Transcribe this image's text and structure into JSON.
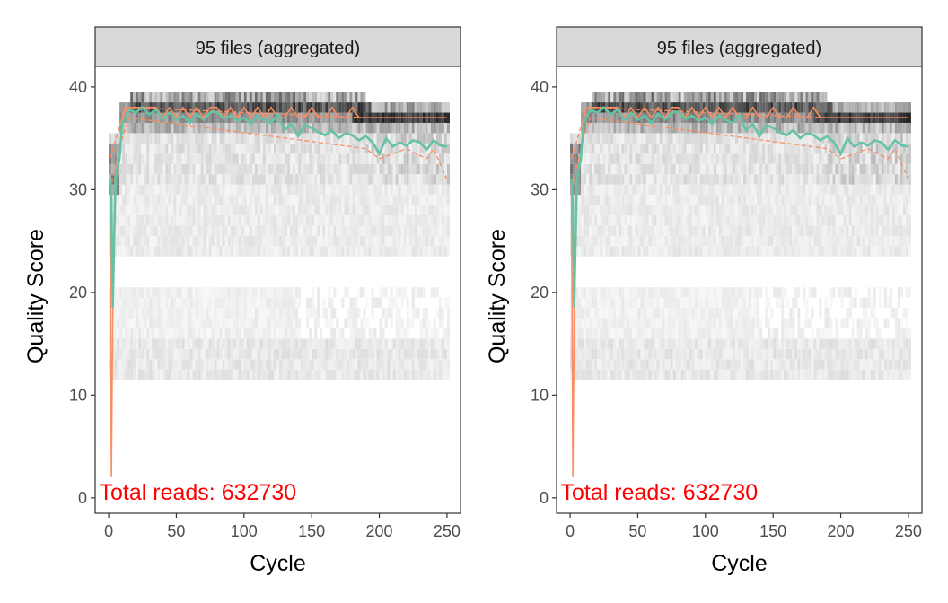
{
  "chart_data": [
    {
      "type": "heatmap",
      "panel_title": "95 files (aggregated)",
      "xlabel": "Cycle",
      "ylabel": "Quality Score",
      "xlim": [
        -10,
        260
      ],
      "ylim": [
        -1.5,
        42
      ],
      "xticks": [
        0,
        50,
        100,
        150,
        200,
        250
      ],
      "yticks": [
        0,
        10,
        20,
        30,
        40
      ],
      "grid": false,
      "annotation": "Total reads: 632730",
      "colors": {
        "mean": "#66c2a5",
        "median": "#fc8d62",
        "quartile": "#fc8d62",
        "annotation": "#ff0000",
        "strip": "#d9d9d9"
      },
      "mean_line": {
        "x": [
          1,
          2,
          3,
          5,
          8,
          10,
          12,
          15,
          20,
          25,
          30,
          35,
          40,
          45,
          50,
          55,
          60,
          65,
          70,
          75,
          80,
          85,
          90,
          95,
          100,
          105,
          110,
          115,
          120,
          125,
          130,
          135,
          140,
          145,
          150,
          155,
          160,
          165,
          170,
          175,
          180,
          185,
          190,
          195,
          200,
          205,
          210,
          215,
          220,
          225,
          230,
          235,
          240,
          245,
          250
        ],
        "y": [
          31,
          29,
          18.5,
          31,
          33,
          36.5,
          37,
          37.8,
          37.5,
          38,
          37.3,
          37.8,
          36.8,
          37.5,
          36.8,
          37.2,
          36.5,
          37.4,
          36.8,
          37.5,
          37.6,
          36.9,
          37.2,
          36.7,
          37,
          36.4,
          37.2,
          36.8,
          36.5,
          37.3,
          35.8,
          36.4,
          35.2,
          36.3,
          36,
          35.6,
          35.3,
          35.8,
          35,
          35.5,
          35.3,
          34.8,
          35.2,
          34.6,
          33.5,
          35,
          34.2,
          34.6,
          34.3,
          34.8,
          34.6,
          33.9,
          34.8,
          34.3,
          34.2
        ]
      },
      "median_line": {
        "x": [
          1,
          2,
          3,
          5,
          8,
          10,
          12,
          15,
          20,
          25,
          30,
          35,
          40,
          45,
          50,
          55,
          60,
          65,
          70,
          75,
          80,
          85,
          90,
          95,
          100,
          105,
          110,
          115,
          120,
          125,
          130,
          135,
          140,
          145,
          150,
          155,
          160,
          165,
          170,
          175,
          180,
          185,
          190,
          195,
          200,
          205,
          210,
          215,
          220,
          225,
          230,
          235,
          240,
          245,
          250
        ],
        "y": [
          31,
          2,
          18,
          31,
          33,
          37,
          38,
          38,
          38,
          38,
          38,
          38,
          37,
          38,
          37,
          38,
          37,
          38,
          37,
          38,
          38,
          37,
          38,
          37,
          38,
          37,
          38,
          37,
          38,
          37,
          37,
          38,
          37,
          37,
          38,
          37,
          37,
          38,
          37,
          37,
          38,
          37,
          37,
          37,
          37,
          37,
          37,
          37,
          37,
          37,
          37,
          37,
          37,
          37,
          37
        ]
      },
      "quartile_lines": [
        {
          "x": [
            1,
            10,
            15,
            190,
            195,
            200,
            250
          ],
          "y": [
            33,
            37,
            38,
            37,
            37,
            37,
            37
          ]
        },
        {
          "x": [
            1,
            10,
            15,
            190,
            200,
            220,
            235,
            240,
            250
          ],
          "y": [
            30,
            35,
            37,
            34,
            33,
            34,
            33,
            34,
            31
          ]
        }
      ]
    },
    {
      "type": "heatmap",
      "panel_title": "95 files (aggregated)",
      "xlabel": "Cycle",
      "ylabel": "Quality Score",
      "xlim": [
        -10,
        260
      ],
      "ylim": [
        -1.5,
        42
      ],
      "xticks": [
        0,
        50,
        100,
        150,
        200,
        250
      ],
      "yticks": [
        0,
        10,
        20,
        30,
        40
      ],
      "grid": false,
      "annotation": "Total reads: 632730",
      "colors": {
        "mean": "#66c2a5",
        "median": "#fc8d62",
        "quartile": "#fc8d62",
        "annotation": "#ff0000",
        "strip": "#d9d9d9"
      },
      "mean_line": {
        "x": [
          1,
          2,
          3,
          5,
          8,
          10,
          12,
          15,
          20,
          25,
          30,
          35,
          40,
          45,
          50,
          55,
          60,
          65,
          70,
          75,
          80,
          85,
          90,
          95,
          100,
          105,
          110,
          115,
          120,
          125,
          130,
          135,
          140,
          145,
          150,
          155,
          160,
          165,
          170,
          175,
          180,
          185,
          190,
          195,
          200,
          205,
          210,
          215,
          220,
          225,
          230,
          235,
          240,
          245,
          250
        ],
        "y": [
          31,
          29,
          18.5,
          31,
          33,
          36.5,
          37,
          37.8,
          37.5,
          38,
          37.3,
          37.8,
          36.8,
          37.5,
          36.8,
          37.2,
          36.5,
          37.4,
          36.8,
          37.5,
          37.6,
          36.9,
          37.2,
          36.7,
          37,
          36.4,
          37.2,
          36.8,
          36.5,
          37.3,
          35.8,
          36.4,
          35.2,
          36.3,
          36,
          35.6,
          35.3,
          35.8,
          35,
          35.5,
          35.3,
          34.8,
          35.2,
          34.6,
          33.5,
          35,
          34.2,
          34.6,
          34.3,
          34.8,
          34.6,
          33.9,
          34.8,
          34.3,
          34.2
        ]
      },
      "median_line": {
        "x": [
          1,
          2,
          3,
          5,
          8,
          10,
          12,
          15,
          20,
          25,
          30,
          35,
          40,
          45,
          50,
          55,
          60,
          65,
          70,
          75,
          80,
          85,
          90,
          95,
          100,
          105,
          110,
          115,
          120,
          125,
          130,
          135,
          140,
          145,
          150,
          155,
          160,
          165,
          170,
          175,
          180,
          185,
          190,
          195,
          200,
          205,
          210,
          215,
          220,
          225,
          230,
          235,
          240,
          245,
          250
        ],
        "y": [
          31,
          2,
          18,
          31,
          33,
          37,
          38,
          38,
          38,
          38,
          38,
          38,
          37,
          38,
          37,
          38,
          37,
          38,
          37,
          38,
          38,
          37,
          38,
          37,
          38,
          37,
          38,
          37,
          38,
          37,
          37,
          38,
          37,
          37,
          38,
          37,
          37,
          38,
          37,
          37,
          38,
          37,
          37,
          37,
          37,
          37,
          37,
          37,
          37,
          37,
          37,
          37,
          37,
          37,
          37
        ]
      },
      "quartile_lines": [
        {
          "x": [
            1,
            10,
            15,
            190,
            195,
            200,
            250
          ],
          "y": [
            33,
            37,
            38,
            37,
            37,
            37,
            37
          ]
        },
        {
          "x": [
            1,
            10,
            15,
            190,
            200,
            220,
            235,
            240,
            250
          ],
          "y": [
            30,
            35,
            37,
            34,
            33,
            34,
            33,
            34,
            31
          ]
        }
      ]
    }
  ]
}
